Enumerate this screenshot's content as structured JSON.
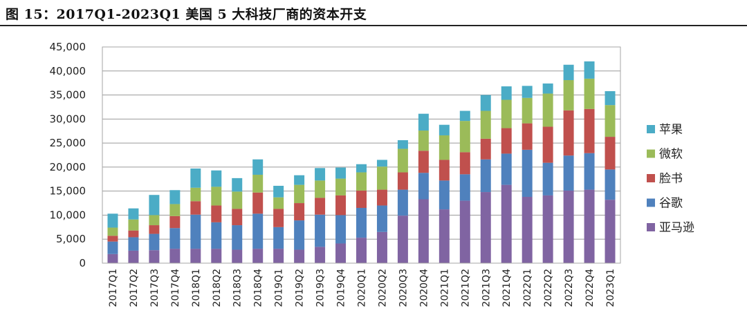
{
  "title": "图 15：2017Q1-2023Q1 美国 5 大科技厂商的资本开支",
  "chart_data": {
    "type": "bar",
    "stacked": true,
    "title": "图 15：2017Q1-2023Q1 美国 5 大科技厂商的资本开支",
    "xlabel": "",
    "ylabel": "",
    "ylim": [
      0,
      45000
    ],
    "yticks": [
      0,
      5000,
      10000,
      15000,
      20000,
      25000,
      30000,
      35000,
      40000,
      45000
    ],
    "ytick_labels": [
      "0",
      "5,000",
      "10,000",
      "15,000",
      "20,000",
      "25,000",
      "30,000",
      "35,000",
      "40,000",
      "45,000"
    ],
    "grid": true,
    "legend_position": "right",
    "categories": [
      "2017Q1",
      "2017Q2",
      "2017Q3",
      "2017Q4",
      "2018Q1",
      "2018Q2",
      "2018Q3",
      "2018Q4",
      "2019Q1",
      "2019Q2",
      "2019Q3",
      "2019Q4",
      "2020Q1",
      "2020Q2",
      "2020Q3",
      "2020Q4",
      "2021Q1",
      "2021Q2",
      "2021Q3",
      "2021Q4",
      "2022Q1",
      "2022Q2",
      "2022Q3",
      "2022Q4",
      "2023Q1"
    ],
    "series": [
      {
        "name": "亚马逊",
        "color": "#8064a2",
        "values": [
          1900,
          2600,
          2700,
          3000,
          3000,
          3000,
          2800,
          3000,
          3000,
          2800,
          3400,
          4100,
          5300,
          6500,
          9900,
          13300,
          11200,
          13000,
          14800,
          16300,
          13800,
          14100,
          15100,
          15300,
          13200
        ]
      },
      {
        "name": "谷歌",
        "color": "#4f81bd",
        "values": [
          2600,
          2800,
          3400,
          4300,
          7100,
          5500,
          5100,
          7300,
          4500,
          6100,
          6700,
          5900,
          6200,
          5500,
          5400,
          5500,
          6000,
          5500,
          6800,
          6500,
          9800,
          6800,
          7300,
          7600,
          6300
        ]
      },
      {
        "name": "脸书",
        "color": "#c0504d",
        "values": [
          1200,
          1400,
          1800,
          2500,
          2800,
          3500,
          3400,
          4400,
          3800,
          3600,
          3500,
          4100,
          3600,
          3300,
          3600,
          4600,
          4300,
          4600,
          4300,
          5300,
          5500,
          7500,
          9400,
          9200,
          6800
        ]
      },
      {
        "name": "微软",
        "color": "#9bbb59",
        "values": [
          1700,
          2300,
          2100,
          2500,
          2800,
          3900,
          3600,
          3700,
          2400,
          3800,
          3600,
          3500,
          3800,
          4800,
          4900,
          4200,
          5100,
          6500,
          5800,
          5900,
          5300,
          6900,
          6300,
          6300,
          6600
        ]
      },
      {
        "name": "苹果",
        "color": "#4bacc6",
        "values": [
          2900,
          2300,
          4200,
          2900,
          4000,
          3400,
          2800,
          3200,
          2400,
          2000,
          2600,
          2300,
          1700,
          1400,
          1800,
          3500,
          2200,
          2100,
          3300,
          2800,
          2500,
          2100,
          3200,
          3600,
          2900
        ]
      }
    ]
  }
}
